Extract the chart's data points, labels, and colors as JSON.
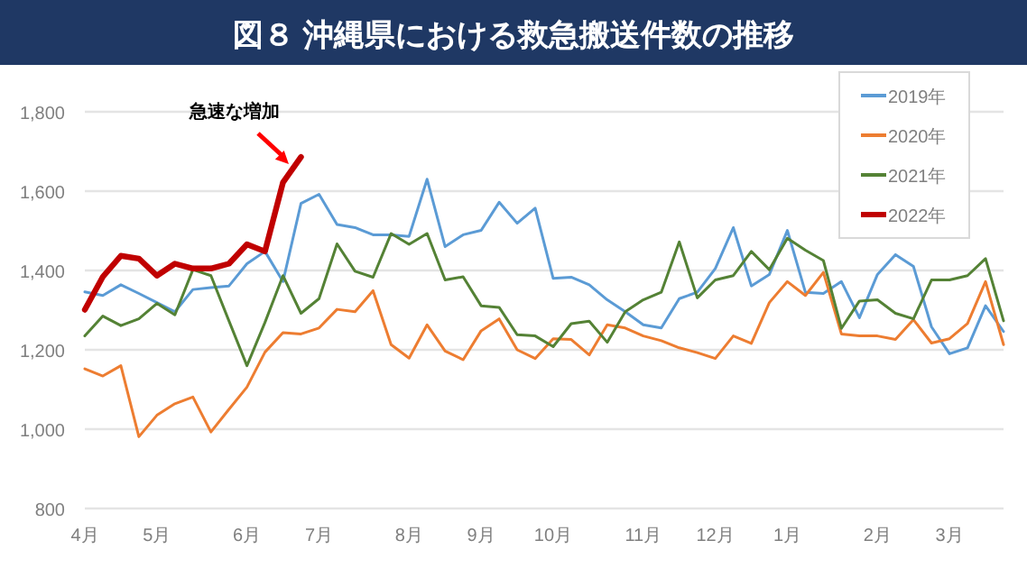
{
  "chart_data": {
    "type": "line",
    "title": "図８ 沖縄県における救急搬送件数の推移",
    "categories": [
      "4月",
      null,
      null,
      null,
      "5月",
      null,
      null,
      null,
      null,
      "6月",
      null,
      null,
      null,
      "7月",
      null,
      null,
      null,
      null,
      "8月",
      null,
      null,
      null,
      "9月",
      null,
      null,
      null,
      "10月",
      null,
      null,
      null,
      null,
      "11月",
      null,
      null,
      null,
      "12月",
      null,
      null,
      null,
      "1月",
      null,
      null,
      null,
      null,
      "2月",
      null,
      null,
      null,
      "3月",
      null,
      null,
      null
    ],
    "series": [
      {
        "name": "2019年",
        "color": "#5b9bd5",
        "values": [
          1346,
          1337,
          1364,
          1342,
          1319,
          1296,
          1352,
          1357,
          1361,
          1417,
          1448,
          1372,
          1569,
          1592,
          1516,
          1508,
          1490,
          1490,
          1486,
          1630,
          1460,
          1490,
          1501,
          1572,
          1519,
          1557,
          1380,
          1383,
          1364,
          1326,
          1296,
          1263,
          1255,
          1329,
          1345,
          1405,
          1508,
          1361,
          1390,
          1501,
          1345,
          1342,
          1372,
          1281,
          1390,
          1440,
          1410,
          1258,
          1190,
          1205,
          1311,
          1246
        ]
      },
      {
        "name": "2020年",
        "color": "#ed7d31",
        "values": [
          1152,
          1134,
          1160,
          981,
          1035,
          1064,
          1081,
          993,
          1050,
          1106,
          1194,
          1243,
          1240,
          1255,
          1302,
          1296,
          1349,
          1213,
          1179,
          1263,
          1197,
          1175,
          1248,
          1278,
          1200,
          1178,
          1228,
          1226,
          1187,
          1263,
          1255,
          1235,
          1223,
          1205,
          1193,
          1178,
          1235,
          1216,
          1319,
          1372,
          1337,
          1395,
          1240,
          1235,
          1235,
          1226,
          1276,
          1217,
          1228,
          1266,
          1372,
          1213
        ]
      },
      {
        "name": "2021年",
        "color": "#548235",
        "values": [
          1235,
          1285,
          1261,
          1278,
          1317,
          1288,
          1402,
          1387,
          1273,
          1160,
          1269,
          1387,
          1292,
          1329,
          1467,
          1398,
          1383,
          1493,
          1466,
          1493,
          1376,
          1384,
          1311,
          1307,
          1238,
          1235,
          1208,
          1266,
          1272,
          1219,
          1296,
          1326,
          1345,
          1472,
          1331,
          1376,
          1387,
          1448,
          1402,
          1481,
          1451,
          1425,
          1254,
          1323,
          1326,
          1292,
          1278,
          1376,
          1376,
          1387,
          1430,
          1273
        ]
      },
      {
        "name": "2022年",
        "color": "#c00000",
        "values": [
          1301,
          1384,
          1437,
          1430,
          1387,
          1417,
          1405,
          1405,
          1417,
          1466,
          1448,
          1622,
          1686,
          null,
          null,
          null,
          null,
          null,
          null,
          null,
          null,
          null,
          null,
          null,
          null,
          null,
          null,
          null,
          null,
          null,
          null,
          null,
          null,
          null,
          null,
          null,
          null,
          null,
          null,
          null,
          null,
          null,
          null,
          null,
          null,
          null,
          null,
          null,
          null,
          null,
          null,
          null
        ]
      }
    ],
    "ylim": [
      800,
      1800
    ],
    "yticks": [
      {
        "value": 800,
        "label": "800"
      },
      {
        "value": 1000,
        "label": "1,000"
      },
      {
        "value": 1200,
        "label": "1,200"
      },
      {
        "value": 1400,
        "label": "1,400"
      },
      {
        "value": 1600,
        "label": "1,600"
      },
      {
        "value": 1800,
        "label": "1,800"
      }
    ],
    "grid": "y",
    "legend": "top right",
    "marker": "none",
    "line_style": "solid",
    "annotations": [
      "急速な増加"
    ]
  }
}
